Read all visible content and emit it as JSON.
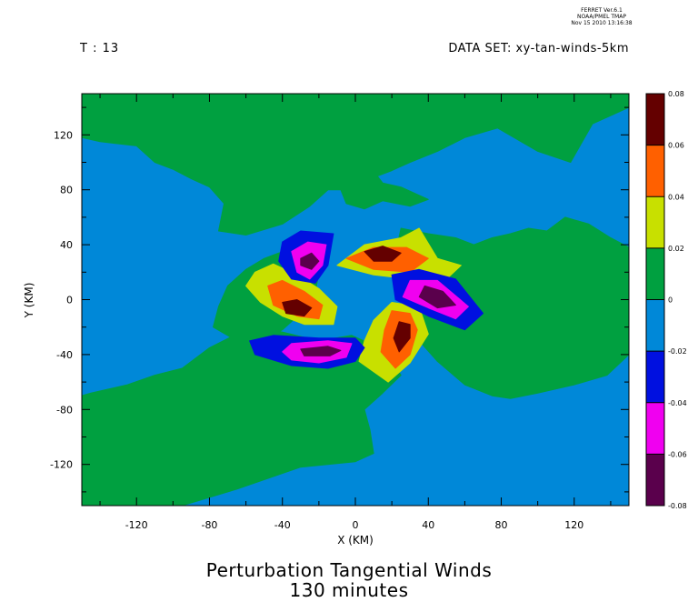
{
  "header": {
    "stamp_lines": [
      "FERRET Ver.6.1",
      "NOAA/PMEL TMAP",
      "Nov 15 2010 13:16:38"
    ],
    "time_label": "T : 13",
    "dataset_label": "DATA SET: xy-tan-winds-5km"
  },
  "chart_data": {
    "type": "heatmap",
    "title": "Perturbation Tangential Winds",
    "subtitle": "130 minutes",
    "xlabel": "X (KM)",
    "ylabel": "Y (KM)",
    "xlim": [
      -150,
      150
    ],
    "ylim": [
      -150,
      150
    ],
    "x_ticks": [
      -120,
      -80,
      -40,
      0,
      40,
      80,
      120
    ],
    "y_ticks": [
      -120,
      -80,
      -40,
      0,
      40,
      80,
      120
    ],
    "grid": false,
    "legend": "right",
    "levels": [
      -0.08,
      -0.06,
      -0.04,
      -0.02,
      0,
      0.02,
      0.04,
      0.06,
      0.08
    ],
    "level_labels": [
      "-0.08",
      "-0.06",
      "-0.04",
      "-0.02",
      "0",
      "0.02",
      "0.04",
      "0.06",
      "0.08"
    ],
    "colors": [
      "#5a004c",
      "#f000f0",
      "#0010e0",
      "#0088d8",
      "#00a040",
      "#c8e000",
      "#ff6000",
      "#640000"
    ],
    "background_level_color": "#0088d8",
    "regions": [
      {
        "name": "north-band",
        "level": 0.01,
        "points": [
          [
            -150,
            150
          ],
          [
            150,
            150
          ],
          [
            150,
            140
          ],
          [
            130,
            128
          ],
          [
            118,
            100
          ],
          [
            100,
            108
          ],
          [
            78,
            125
          ],
          [
            60,
            118
          ],
          [
            45,
            108
          ],
          [
            30,
            100
          ],
          [
            20,
            94
          ],
          [
            12,
            90
          ],
          [
            15,
            85
          ],
          [
            25,
            82
          ],
          [
            40,
            73
          ],
          [
            30,
            68
          ],
          [
            15,
            72
          ],
          [
            5,
            66
          ],
          [
            -5,
            70
          ],
          [
            -8,
            80
          ],
          [
            -15,
            80
          ],
          [
            -25,
            68
          ],
          [
            -40,
            55
          ],
          [
            -60,
            47
          ],
          [
            -75,
            50
          ],
          [
            -72,
            70
          ],
          [
            -80,
            82
          ],
          [
            -90,
            88
          ],
          [
            -100,
            95
          ],
          [
            -110,
            100
          ],
          [
            -120,
            112
          ],
          [
            -140,
            115
          ],
          [
            -150,
            118
          ]
        ]
      },
      {
        "name": "east-wing",
        "level": 0.01,
        "points": [
          [
            25,
            52
          ],
          [
            40,
            48
          ],
          [
            55,
            45
          ],
          [
            65,
            40
          ],
          [
            75,
            45
          ],
          [
            85,
            48
          ],
          [
            95,
            52
          ],
          [
            105,
            50
          ],
          [
            115,
            60
          ],
          [
            128,
            55
          ],
          [
            140,
            45
          ],
          [
            150,
            38
          ],
          [
            150,
            -40
          ],
          [
            138,
            -55
          ],
          [
            120,
            -62
          ],
          [
            100,
            -68
          ],
          [
            85,
            -72
          ],
          [
            75,
            -70
          ],
          [
            60,
            -62
          ],
          [
            45,
            -45
          ],
          [
            35,
            -30
          ],
          [
            30,
            -12
          ],
          [
            28,
            5
          ],
          [
            20,
            22
          ]
        ]
      },
      {
        "name": "west-wing",
        "level": 0.01,
        "points": [
          [
            -30,
            38
          ],
          [
            -42,
            34
          ],
          -50,
          30,
          [
            -50,
            30
          ],
          [
            -60,
            22
          ],
          [
            -70,
            10
          ],
          [
            -75,
            -5
          ],
          [
            -78,
            -20
          ],
          [
            -65,
            -30
          ],
          [
            -55,
            -32
          ],
          [
            -40,
            -22
          ],
          [
            -30,
            -10
          ],
          [
            -22,
            5
          ],
          [
            -20,
            20
          ]
        ]
      },
      {
        "name": "south-band",
        "level": 0.01,
        "points": [
          [
            -2,
            -26
          ],
          [
            -20,
            -30
          ],
          [
            -45,
            -22
          ],
          [
            -65,
            -25
          ],
          [
            -80,
            -35
          ],
          [
            -95,
            -50
          ],
          [
            -110,
            -55
          ],
          [
            -125,
            -62
          ],
          [
            -145,
            -68
          ],
          [
            -150,
            -70
          ],
          [
            -150,
            -150
          ],
          [
            -150,
            -150
          ],
          [
            -95,
            -150
          ],
          [
            -65,
            -138
          ],
          [
            -30,
            -122
          ],
          [
            0,
            -118
          ],
          [
            10,
            -112
          ],
          [
            8,
            -95
          ],
          [
            5,
            -80
          ],
          [
            15,
            -68
          ],
          [
            25,
            -55
          ],
          [
            18,
            -40
          ],
          [
            8,
            -32
          ]
        ]
      },
      {
        "name": "band-sw-pos",
        "level": 0.03,
        "points": [
          [
            -55,
            20
          ],
          [
            -45,
            26
          ],
          [
            -32,
            18
          ],
          [
            -20,
            8
          ],
          [
            -10,
            -5
          ],
          [
            -12,
            -18
          ],
          [
            -28,
            -18
          ],
          [
            -40,
            -12
          ],
          [
            -52,
            -2
          ],
          [
            -60,
            10
          ]
        ]
      },
      {
        "name": "band-sw-red",
        "level": 0.05,
        "points": [
          [
            -48,
            10
          ],
          [
            -40,
            14
          ],
          [
            -28,
            6
          ],
          [
            -18,
            -4
          ],
          [
            -20,
            -14
          ],
          [
            -32,
            -12
          ],
          [
            -45,
            -4
          ]
        ]
      },
      {
        "name": "band-sw-dark",
        "level": 0.07,
        "points": [
          [
            -40,
            -2
          ],
          [
            -32,
            0
          ],
          [
            -24,
            -6
          ],
          [
            -28,
            -12
          ],
          [
            -38,
            -10
          ]
        ]
      },
      {
        "name": "band-ne-pos",
        "level": 0.03,
        "points": [
          [
            -10,
            25
          ],
          [
            5,
            40
          ],
          [
            25,
            45
          ],
          [
            35,
            52
          ],
          [
            45,
            30
          ],
          [
            58,
            25
          ],
          [
            50,
            15
          ],
          [
            30,
            15
          ],
          [
            10,
            18
          ]
        ]
      },
      {
        "name": "band-ne-red",
        "level": 0.05,
        "points": [
          [
            -5,
            30
          ],
          [
            10,
            38
          ],
          [
            28,
            38
          ],
          [
            40,
            30
          ],
          [
            30,
            20
          ],
          [
            10,
            22
          ]
        ]
      },
      {
        "name": "band-ne-dark",
        "level": 0.07,
        "points": [
          [
            5,
            35
          ],
          [
            15,
            39
          ],
          [
            25,
            34
          ],
          [
            20,
            28
          ],
          [
            10,
            28
          ]
        ]
      },
      {
        "name": "band-se-pos",
        "level": 0.03,
        "points": [
          [
            18,
            -60
          ],
          [
            30,
            -46
          ],
          [
            40,
            -25
          ],
          [
            35,
            -5
          ],
          [
            20,
            -2
          ],
          [
            10,
            -15
          ],
          [
            5,
            -30
          ],
          [
            2,
            -45
          ]
        ]
      },
      {
        "name": "band-se-red",
        "level": 0.05,
        "points": [
          [
            22,
            -50
          ],
          [
            30,
            -40
          ],
          [
            34,
            -22
          ],
          [
            30,
            -10
          ],
          [
            20,
            -8
          ],
          [
            16,
            -22
          ],
          [
            14,
            -38
          ]
        ]
      },
      {
        "name": "band-se-dark",
        "level": 0.07,
        "points": [
          [
            24,
            -38
          ],
          [
            30,
            -28
          ],
          [
            30,
            -18
          ],
          [
            24,
            -16
          ],
          [
            21,
            -28
          ]
        ]
      },
      {
        "name": "band-nw-neg",
        "level": -0.03,
        "points": [
          [
            -40,
            42
          ],
          [
            -30,
            50
          ],
          [
            -12,
            48
          ],
          [
            -15,
            25
          ],
          [
            -22,
            12
          ],
          [
            -35,
            15
          ],
          [
            -42,
            28
          ]
        ]
      },
      {
        "name": "band-nw-mag",
        "level": -0.05,
        "points": [
          [
            -35,
            35
          ],
          [
            -26,
            42
          ],
          [
            -16,
            40
          ],
          [
            -18,
            25
          ],
          [
            -25,
            15
          ],
          [
            -32,
            20
          ]
        ]
      },
      {
        "name": "band-nw-dark",
        "level": -0.07,
        "points": [
          [
            -30,
            30
          ],
          [
            -24,
            34
          ],
          [
            -20,
            28
          ],
          [
            -24,
            22
          ],
          [
            -30,
            25
          ]
        ]
      },
      {
        "name": "band-e-neg",
        "level": -0.03,
        "points": [
          [
            20,
            18
          ],
          [
            35,
            22
          ],
          [
            55,
            15
          ],
          [
            70,
            -10
          ],
          [
            60,
            -22
          ],
          [
            40,
            -12
          ],
          [
            22,
            0
          ]
        ]
      },
      {
        "name": "band-e-mag",
        "level": -0.05,
        "points": [
          [
            30,
            14
          ],
          [
            45,
            14
          ],
          [
            62,
            -5
          ],
          [
            55,
            -14
          ],
          [
            40,
            -6
          ],
          [
            26,
            2
          ]
        ]
      },
      {
        "name": "band-e-dark",
        "level": -0.07,
        "points": [
          [
            38,
            10
          ],
          [
            48,
            6
          ],
          [
            55,
            -4
          ],
          [
            45,
            -6
          ],
          [
            35,
            2
          ]
        ]
      },
      {
        "name": "band-s-neg",
        "level": -0.03,
        "points": [
          [
            -58,
            -30
          ],
          [
            -45,
            -26
          ],
          [
            -20,
            -28
          ],
          [
            0,
            -28
          ],
          [
            5,
            -35
          ],
          [
            0,
            -45
          ],
          [
            -15,
            -50
          ],
          [
            -35,
            -48
          ],
          [
            -55,
            -40
          ]
        ]
      },
      {
        "name": "band-s-mag",
        "level": -0.05,
        "points": [
          [
            -35,
            -32
          ],
          [
            -15,
            -30
          ],
          [
            -2,
            -32
          ],
          [
            -5,
            -42
          ],
          [
            -20,
            -46
          ],
          [
            -35,
            -44
          ],
          [
            -40,
            -38
          ]
        ]
      },
      {
        "name": "band-s-dark",
        "level": -0.07,
        "points": [
          [
            -30,
            -36
          ],
          [
            -15,
            -34
          ],
          [
            -8,
            -37
          ],
          [
            -14,
            -41
          ],
          [
            -28,
            -41
          ]
        ]
      }
    ]
  }
}
